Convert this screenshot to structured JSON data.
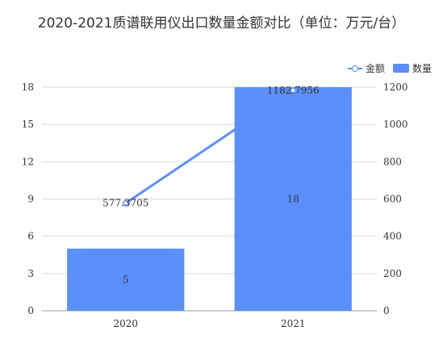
{
  "chart_data": {
    "type": "bar",
    "title": "2020-2021质谱联用仪出口数量金额对比（单位：万元/台）",
    "categories": [
      "2020",
      "2021"
    ],
    "series": [
      {
        "name": "数量",
        "type": "bar",
        "axis": "left",
        "values": [
          5,
          18
        ],
        "labels": [
          "5",
          "18"
        ],
        "color": "#5b8ff9"
      },
      {
        "name": "金额",
        "type": "line",
        "axis": "right",
        "values": [
          577.3705,
          1182.7956
        ],
        "labels": [
          "577.3705",
          "1182.7956"
        ],
        "color": "#5b8ff9"
      }
    ],
    "y_left": {
      "ylim": [
        0,
        18
      ],
      "ticks": [
        "0",
        "3",
        "6",
        "9",
        "12",
        "15",
        "18"
      ]
    },
    "y_right": {
      "ylim": [
        0,
        1200
      ],
      "ticks": [
        "0",
        "200",
        "400",
        "600",
        "800",
        "1000",
        "1200"
      ]
    },
    "grid": true,
    "legend": "top-right",
    "xlabel": "",
    "ylabel": ""
  }
}
